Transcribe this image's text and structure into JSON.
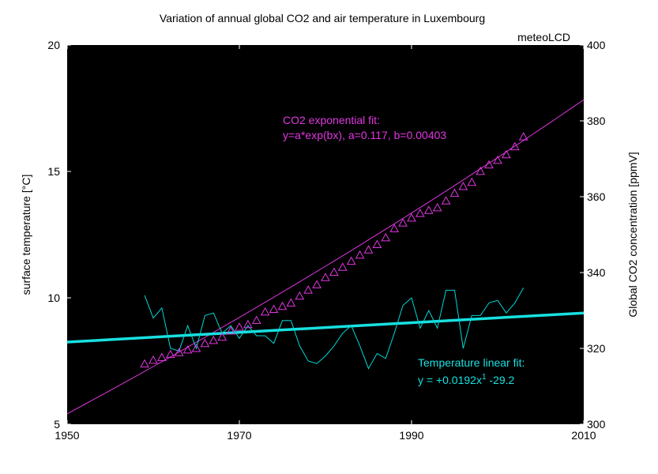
{
  "chart_data": {
    "type": "line",
    "title": "Variation of annual global CO2 and air temperature in Luxembourg",
    "corner_label": "meteoLCD",
    "plot_background": "#000000",
    "x": {
      "lim": [
        1950,
        2010
      ],
      "ticks": [
        1950,
        1970,
        1990,
        2010
      ]
    },
    "y_left": {
      "label": "surface temperature [°C]",
      "lim": [
        5,
        20
      ],
      "ticks": [
        5,
        10,
        15,
        20
      ]
    },
    "y_right": {
      "label": "Global CO2 concentration [ppmV]",
      "lim": [
        300,
        400
      ],
      "ticks": [
        300,
        320,
        340,
        360,
        380,
        400
      ]
    },
    "series": [
      {
        "name": "temperature",
        "axis": "left",
        "color": "#00d7d7",
        "x": [
          1959,
          1960,
          1961,
          1962,
          1963,
          1964,
          1965,
          1966,
          1967,
          1968,
          1969,
          1970,
          1971,
          1972,
          1973,
          1974,
          1975,
          1976,
          1977,
          1978,
          1979,
          1980,
          1981,
          1982,
          1983,
          1984,
          1985,
          1986,
          1987,
          1988,
          1989,
          1990,
          1991,
          1992,
          1993,
          1994,
          1995,
          1996,
          1997,
          1998,
          1999,
          2000,
          2001,
          2002,
          2003
        ],
        "y": [
          10.1,
          9.2,
          9.6,
          8.0,
          7.9,
          8.9,
          8.0,
          9.3,
          9.4,
          8.6,
          8.9,
          8.4,
          8.9,
          8.5,
          8.5,
          8.2,
          9.1,
          9.1,
          8.1,
          7.5,
          7.4,
          7.7,
          8.1,
          8.6,
          8.9,
          8.1,
          7.2,
          7.8,
          7.6,
          8.6,
          9.7,
          10.0,
          8.8,
          9.5,
          8.8,
          10.3,
          10.3,
          8.0,
          9.3,
          9.3,
          9.8,
          9.9,
          9.4,
          9.8,
          10.4
        ]
      },
      {
        "name": "CO2",
        "axis": "right",
        "color": "#e036e0",
        "marker": "triangle",
        "x": [
          1959,
          1960,
          1961,
          1962,
          1963,
          1964,
          1965,
          1966,
          1967,
          1968,
          1969,
          1970,
          1971,
          1972,
          1973,
          1974,
          1975,
          1976,
          1977,
          1978,
          1979,
          1980,
          1981,
          1982,
          1983,
          1984,
          1985,
          1986,
          1987,
          1988,
          1989,
          1990,
          1991,
          1992,
          1993,
          1994,
          1995,
          1996,
          1997,
          1998,
          1999,
          2000,
          2001,
          2002,
          2003
        ],
        "y": [
          315.9,
          316.9,
          317.6,
          318.4,
          318.9,
          319.6,
          320.0,
          321.3,
          322.1,
          323.0,
          324.6,
          325.6,
          326.3,
          327.4,
          329.6,
          330.3,
          331.1,
          332.0,
          333.8,
          335.4,
          336.8,
          338.7,
          340.1,
          341.4,
          343.0,
          344.6,
          346.0,
          347.4,
          349.2,
          351.6,
          353.1,
          354.4,
          355.6,
          356.4,
          357.1,
          358.9,
          360.9,
          362.7,
          363.8,
          366.7,
          368.4,
          369.6,
          371.1,
          373.2,
          375.8
        ]
      }
    ],
    "fits": [
      {
        "name": "temperature linear fit",
        "axis": "left",
        "color": "#18e0e0",
        "x": [
          1950,
          2010
        ],
        "y": [
          8.25,
          9.4
        ],
        "label_line1": "Temperature linear fit:",
        "label_line2_prefix": "y = +0.0192x",
        "label_sup": "1",
        "label_line2_suffix": " -29.2"
      },
      {
        "name": "CO2 exponential fit",
        "axis": "right",
        "color": "#e036e0",
        "a": 0.117,
        "b": 0.00403,
        "x_start": 1950,
        "x_end": 2010,
        "label_line1": "CO2 exponential fit:",
        "label_line2": "y=a*exp(bx), a=0.117, b=0.00403"
      }
    ]
  }
}
